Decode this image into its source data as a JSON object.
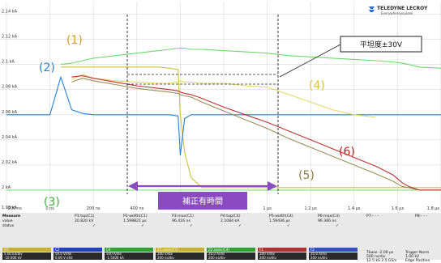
{
  "logo": {
    "brand": "TELEDYNE LECROY",
    "tagline": "Everywhereyoulook"
  },
  "chart_data": {
    "type": "line",
    "x": [
      -200,
      0,
      50,
      100,
      150,
      200,
      300,
      400,
      500,
      550,
      590,
      600,
      620,
      650,
      700,
      800,
      900,
      1000,
      1100,
      1200,
      1300,
      1400,
      1500,
      1580,
      1620,
      1650,
      1700,
      1800
    ],
    "series": [
      {
        "id": "1",
        "color": "#cfc040",
        "values": [
          null,
          null,
          2098,
          2098,
          2098,
          2098,
          2098,
          2098,
          2098,
          2097,
          2096,
          2060,
          2030,
          2010,
          2002,
          2002,
          2002,
          2002,
          2002,
          2002,
          2002,
          2002,
          2002,
          2002,
          2002,
          2002,
          2002,
          2002
        ]
      },
      {
        "id": "2",
        "color": "#2a7fd4",
        "values": [
          2060,
          2060,
          2090,
          2064,
          2061,
          2060,
          2060,
          2060,
          2060,
          2060,
          2059,
          2028,
          2057,
          2060,
          2060,
          2060,
          2060,
          2060,
          2060,
          2060,
          2060,
          2060,
          2060,
          2060,
          2060,
          2060,
          2060,
          2060
        ]
      },
      {
        "id": "3",
        "color": "#7ee07e",
        "values": [
          2000,
          2000,
          2000,
          2000,
          2000,
          2000,
          2000,
          2000,
          2000,
          2000,
          2000,
          2000,
          2000,
          2000,
          2000,
          2000,
          2000,
          2000,
          2000,
          2000,
          2000,
          2000,
          2000,
          2000,
          2000,
          2000,
          2000,
          2000
        ]
      },
      {
        "id": "4",
        "color": "#e6d86a",
        "values": [
          null,
          null,
          null,
          2088,
          2092,
          2089,
          2087,
          2086,
          2085,
          2085,
          2086,
          2087,
          2086,
          2086,
          2085,
          2085,
          2083,
          2082,
          2076,
          2070,
          2064,
          2060,
          2058,
          null,
          null,
          null,
          null,
          null
        ]
      },
      {
        "id": "5",
        "color": "#9c8e5a",
        "values": [
          null,
          null,
          null,
          2086,
          2089,
          2087,
          2084,
          2081,
          2079,
          2078,
          2077,
          2076,
          2075,
          2074,
          2070,
          2063,
          2056,
          2049,
          2041,
          2034,
          2027,
          2020,
          2013,
          2007,
          2003,
          2002,
          2000,
          2000
        ]
      },
      {
        "id": "6",
        "color": "#c03030",
        "values": [
          null,
          null,
          null,
          2090,
          2091,
          2089,
          2086,
          2083,
          2081,
          2080,
          2079,
          2078,
          2077,
          2076,
          2073,
          2066,
          2060,
          2054,
          2047,
          2040,
          2033,
          2026,
          2019,
          2012,
          2006,
          2003,
          2000,
          2000
        ]
      },
      {
        "id": "7",
        "color": "#70d870",
        "values": [
          null,
          null,
          2100,
          2101,
          2103,
          2105,
          2107,
          2109,
          2111,
          2112,
          2113,
          2113,
          2113,
          2112,
          2112,
          2111,
          2110,
          2109,
          2107,
          2106,
          2105,
          2104,
          2103,
          2102,
          2101,
          2100,
          2098,
          2097
        ]
      }
    ],
    "series_labels": [
      "(1)",
      "(2)",
      "(3)",
      "(4)",
      "(5)",
      "(6)"
    ],
    "ytick_labels": [
      "2.14 kA",
      "2.12 kA",
      "2.1 kA",
      "2.08 kA",
      "2.06 kA",
      "2.04 kA",
      "2.02 kA",
      "2 kA",
      "1.98 kA"
    ],
    "ytick_values": [
      2140,
      2120,
      2100,
      2080,
      2060,
      2040,
      2020,
      2000,
      1980
    ],
    "xtick_labels": [
      "-200 ns",
      "0 ns",
      "200 ns",
      "400 ns",
      "600 ns",
      "800 ns",
      "1 µs",
      "1.2 µs",
      "1.4 µs",
      "1.6 µs",
      "1.8 µs"
    ],
    "xtick_values": [
      -200,
      0,
      200,
      400,
      600,
      800,
      1000,
      1200,
      1400,
      1600,
      1800
    ],
    "xlim": [
      -200,
      1800
    ],
    "ylim": [
      1980,
      2150
    ],
    "grid": true,
    "annotations": {
      "flatness": "平坦度±30V",
      "correction": "補正有時間",
      "correction_range_ns": [
        0,
        1000
      ]
    }
  },
  "measure": {
    "row_labels": [
      "Measure",
      "value",
      "status"
    ],
    "columns": [
      {
        "name": "P1:top(C1)",
        "value": "20.820 kV"
      },
      {
        "name": "P2:width(C1)",
        "value": "1.598821 µs"
      },
      {
        "name": "P3:max(C1)",
        "value": "96.416 ns"
      },
      {
        "name": "P4:top(C4)",
        "value": "2.1084 kA"
      },
      {
        "name": "P5:width(C4)",
        "value": "1.59436 µs"
      },
      {
        "name": "P6:max(C4)",
        "value": "96.366 ns"
      },
      {
        "name": "P7:- - -",
        "value": ""
      },
      {
        "name": "P8:- - -",
        "value": ""
      }
    ],
    "channels": [
      {
        "label": "C1",
        "v1": "5.00 kV/div",
        "v2": "-10.000 kV",
        "color": "#c9b030"
      },
      {
        "label": "C2",
        "v1": "50.0 V/div",
        "v2": "0.00 V ofst",
        "color": "#2040c0"
      },
      {
        "label": "C4",
        "v1": "500 A/div",
        "v2": "-1.5000 kA",
        "color": "#30a030"
      },
      {
        "label": "Z1 zoom(C1)",
        "v1": "200 V/div",
        "v2": "200 ns/div",
        "color": "#c9b030"
      },
      {
        "label": "Z2 zoom(C4)",
        "v1": "20.0 A/div",
        "v2": "200 ns/div",
        "color": "#30a030"
      },
      {
        "label": "F1",
        "v1": "200 V/div",
        "v2": "200 ns/div",
        "color": "#b03030"
      },
      {
        "label": "F2",
        "v1": "20.0 A/div",
        "v2": "200 ns/div",
        "color": "#3050c0"
      }
    ],
    "timebase": {
      "label": "Tbase",
      "value": "-2.00 µs",
      "div": "500 ns/div",
      "rate": "12.5 kS  2.5 GS/s"
    },
    "trigger": {
      "label": "Trigger",
      "mode": "Norm",
      "value": "1.00 kV",
      "edge": "Edge",
      "slope": "Positive"
    }
  }
}
